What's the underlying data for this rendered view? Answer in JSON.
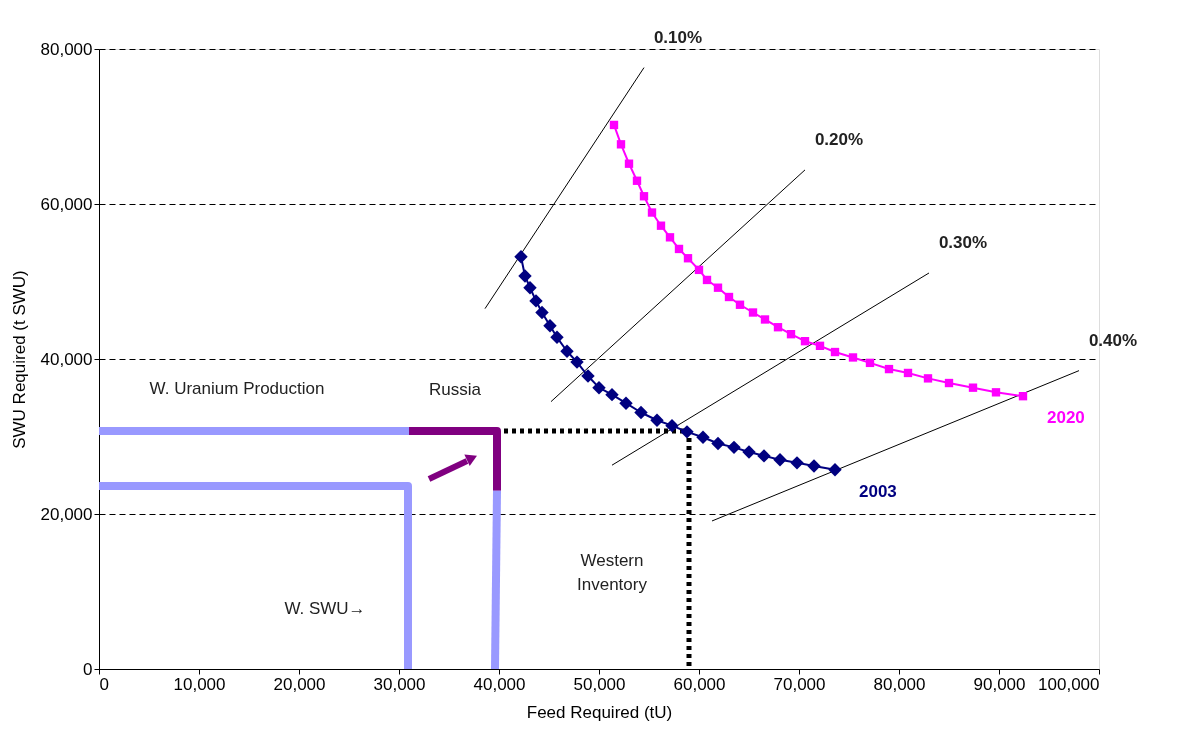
{
  "chart_data": {
    "type": "line",
    "xlabel": "Feed Required (tU)",
    "ylabel": "SWU Required (t SWU)",
    "xlim": [
      0,
      100000
    ],
    "xticks": [
      0,
      {
        "value": 10000,
        "label": "10,000"
      },
      {
        "value": 20000,
        "label": "20,000"
      },
      {
        "value": 30000,
        "label": "30,000"
      },
      {
        "value": 40000,
        "label": "40,000"
      },
      {
        "value": 50000,
        "label": "50,000"
      },
      {
        "value": 60000,
        "label": "60,000"
      },
      {
        "value": 70000,
        "label": "70,000"
      },
      {
        "value": 80000,
        "label": "80,000"
      },
      {
        "value": 90000,
        "label": "90,000"
      },
      {
        "value": 100000,
        "label": "100,000"
      }
    ],
    "ylim": [
      0,
      80000
    ],
    "yticks": [
      0,
      {
        "value": 20000,
        "label": "20,000"
      },
      {
        "value": 40000,
        "label": "40,000"
      },
      {
        "value": 60000,
        "label": "60,000"
      },
      {
        "value": 80000,
        "label": "80,000"
      }
    ],
    "grid": "y",
    "series": [
      {
        "name": "0.10%",
        "color": "#000000",
        "marker": "none",
        "line_style": "solid",
        "x": [
          38600,
          54500
        ],
        "values": [
          46500,
          77600
        ]
      },
      {
        "name": "0.20%",
        "color": "#000000",
        "marker": "none",
        "line_style": "solid",
        "x": [
          45200,
          70600
        ],
        "values": [
          34500,
          64400
        ]
      },
      {
        "name": "0.30%",
        "color": "#000000",
        "marker": "none",
        "line_style": "solid",
        "x": [
          51300,
          83000
        ],
        "values": [
          26300,
          51100
        ]
      },
      {
        "name": "0.40%",
        "color": "#000000",
        "marker": "none",
        "line_style": "solid",
        "x": [
          61300,
          98000
        ],
        "values": [
          19100,
          38500
        ]
      },
      {
        "color": "#9999ff",
        "marker": "none",
        "line_style": "solid",
        "x": [
          0,
          31000
        ],
        "values": [
          30700,
          30700
        ]
      },
      {
        "color": "#9999ff",
        "marker": "none",
        "line_style": "solid",
        "x": [
          0,
          30900,
          30900
        ],
        "values": [
          23600,
          23600,
          0
        ]
      },
      {
        "color": "#800080",
        "marker": "none",
        "line_style": "solid",
        "x": [
          31000,
          39800,
          39800
        ],
        "values": [
          30700,
          30700,
          23000
        ]
      },
      {
        "color": "#9999ff",
        "marker": "none",
        "line_style": "solid",
        "x": [
          39800,
          39600
        ],
        "values": [
          23000,
          0
        ]
      },
      {
        "color": "#000000",
        "marker": "none",
        "line_style": "dotted",
        "x": [
          40500,
          59000,
          59000
        ],
        "values": [
          30700,
          30700,
          0
        ]
      },
      {
        "name": "2020",
        "color": "#ff00ff",
        "marker": "square",
        "line_style": "solid",
        "x": [
          51500,
          52200,
          53000,
          53800,
          54500,
          55300,
          56200,
          57100,
          58000,
          58900,
          60000,
          60800,
          61900,
          63000,
          64100,
          65400,
          66600,
          67900,
          69200,
          70600,
          72100,
          73600,
          75400,
          77100,
          79000,
          80900,
          82900,
          85000,
          87400,
          89700,
          92400
        ],
        "values": [
          70200,
          67700,
          65200,
          63000,
          61000,
          58900,
          57200,
          55700,
          54200,
          53000,
          51500,
          50200,
          49200,
          48000,
          47000,
          46000,
          45100,
          44100,
          43200,
          42300,
          41700,
          40900,
          40200,
          39500,
          38700,
          38200,
          37500,
          36900,
          36300,
          35700,
          35200
        ]
      },
      {
        "name": "2003",
        "color": "#000080",
        "marker": "diamond",
        "line_style": "solid",
        "x": [
          42200,
          42600,
          43100,
          43700,
          44300,
          45100,
          45800,
          46800,
          47800,
          48900,
          50000,
          51300,
          52700,
          54200,
          55800,
          57300,
          58800,
          60400,
          61900,
          63500,
          65000,
          66500,
          68100,
          69800,
          71500,
          73600
        ],
        "values": [
          53200,
          50700,
          49200,
          47500,
          46000,
          44300,
          42800,
          41000,
          39600,
          37800,
          36300,
          35400,
          34300,
          33100,
          32100,
          31400,
          30600,
          29900,
          29100,
          28600,
          28000,
          27500,
          27000,
          26600,
          26200,
          25700
        ]
      }
    ],
    "annotations": [
      "W. Uranium Production",
      "Russia",
      "W. SWU→",
      "Western\nInventory"
    ]
  }
}
